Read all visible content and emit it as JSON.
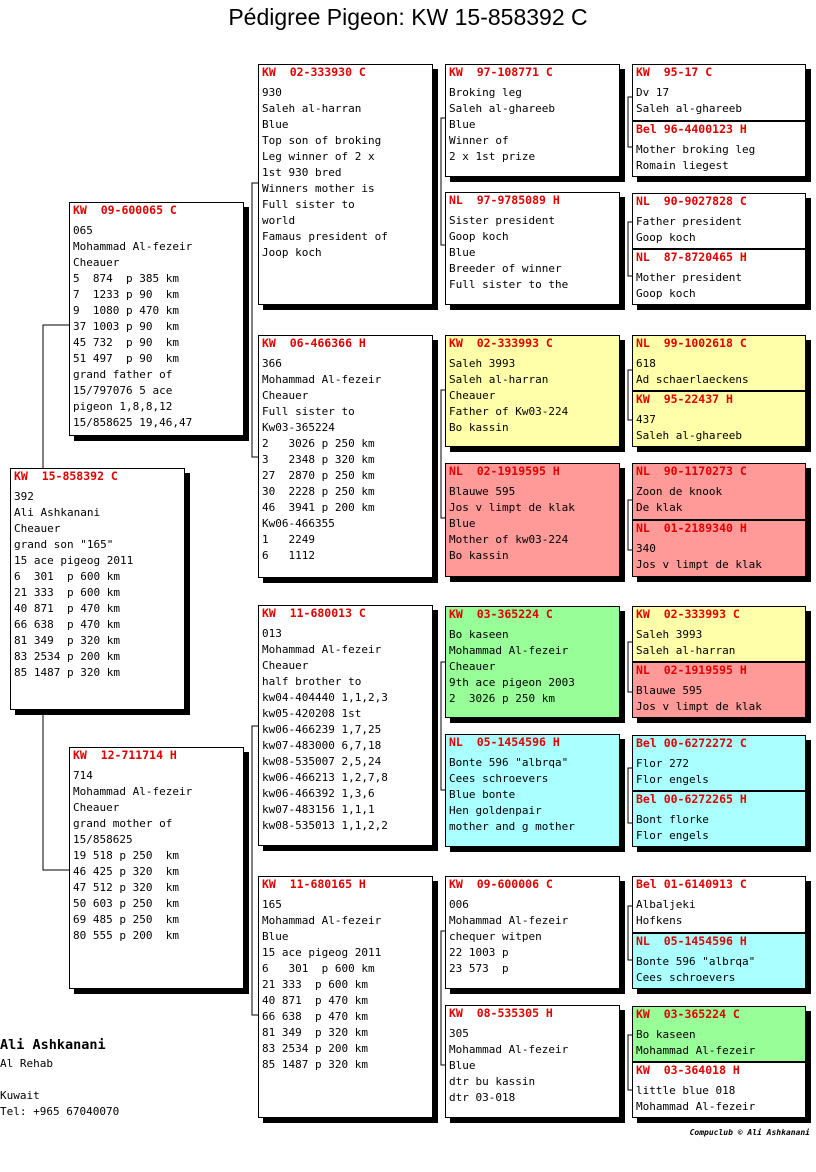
{
  "title": "Pédigree Pigeon: KW  15-858392 C",
  "colors": {
    "header_text": "#e00000",
    "yellow": "#ffffaa",
    "red": "#ff9a99",
    "green": "#98ff98",
    "cyan": "#aaffff",
    "white": "#ffffff"
  },
  "boxes": {
    "subject": {
      "header": "KW  15-858392 C",
      "lines": [
        "392",
        "Ali Ashkanani",
        "Cheauer",
        "grand son \"165\"",
        "15 ace pigeog 2011",
        "6  301  p 600 km",
        "21 333  p 600 km",
        "40 871  p 470 km",
        "66 638  p 470 km",
        "81 349  p 320 km",
        "83 2534 p 200 km",
        "85 1487 p 320 km"
      ]
    },
    "sire": {
      "header": "KW  09-600065 C",
      "lines": [
        "065",
        "Mohammad Al-fezeir",
        "Cheauer",
        "5  874  p 385 km",
        "7  1233 p 90  km",
        "9  1080 p 470 km",
        "37 1003 p 90  km",
        "45 732  p 90  km",
        "51 497  p 90  km",
        "grand father of",
        "15/797076 5 ace",
        "pigeon 1,8,8,12",
        "15/858625 19,46,47"
      ]
    },
    "dam": {
      "header": "KW  12-711714 H",
      "lines": [
        "714",
        "Mohammad Al-fezeir",
        "Cheauer",
        "grand mother of",
        "15/858625",
        "19 518 p 250  km",
        "46 425 p 320  km",
        "47 512 p 320  km",
        "50 603 p 250  km",
        "69 485 p 250  km",
        "80 555 p 200  km"
      ]
    },
    "ss": {
      "header": "KW  02-333930 C",
      "lines": [
        "930",
        "Saleh al-harran",
        "Blue",
        "Top son of broking",
        "Leg winner of 2 x",
        "1st 930 bred",
        "Winners mother is",
        "Full sister to",
        "world",
        "Famaus president of",
        "Joop koch"
      ]
    },
    "sd": {
      "header": "KW  06-466366 H",
      "lines": [
        "366",
        "Mohammad Al-fezeir",
        "Cheauer",
        "Full sister to",
        "Kw03-365224",
        "2   3026 p 250 km",
        "3   2348 p 320 km",
        "27  2870 p 250 km",
        "30  2228 p 250 km",
        "46  3941 p 200 km",
        "Kw06-466355",
        "1   2249",
        "6   1112"
      ]
    },
    "ds": {
      "header": "KW  11-680013 C",
      "lines": [
        "013",
        "Mohammad Al-fezeir",
        "Cheauer",
        "half brother to",
        "kw04-404440 1,1,2,3",
        "kw05-420208 1st",
        "kw06-466239 1,7,25",
        "kw07-483000 6,7,18",
        "kw08-535007 2,5,24",
        "kw06-466213 1,2,7,8",
        "kw06-466392 1,3,6",
        "kw07-483156 1,1,1",
        "kw08-535013 1,1,2,2"
      ]
    },
    "dd": {
      "header": "KW  11-680165 H",
      "lines": [
        "165",
        "Mohammad Al-fezeir",
        "Blue",
        "15 ace pigeog 2011",
        "6   301  p 600 km",
        "21 333  p 600 km",
        "40 871  p 470 km",
        "66 638  p 470 km",
        "81 349  p 320 km",
        "83 2534 p 200 km",
        "85 1487 p 320 km"
      ]
    },
    "sss": {
      "header": "KW  97-108771 C",
      "lines": [
        "Broking leg",
        "Saleh al-ghareeb",
        "Blue",
        "Winner of",
        "2 x 1st prize"
      ]
    },
    "ssd": {
      "header": "NL  97-9785089 H",
      "lines": [
        "Sister president",
        "Goop koch",
        "Blue",
        "Breeder of winner",
        "Full sister to the"
      ]
    },
    "sds": {
      "header": "KW  02-333993 C",
      "lines": [
        "Saleh 3993",
        "Saleh al-harran",
        "Cheauer",
        "Father of Kw03-224",
        "Bo kassin"
      ]
    },
    "sdd": {
      "header": "NL  02-1919595 H",
      "lines": [
        "Blauwe 595",
        "Jos v limpt de klak",
        "Blue",
        "Mother of kw03-224",
        "Bo kassin"
      ]
    },
    "dss": {
      "header": "KW  03-365224 C",
      "lines": [
        "Bo kaseen",
        "Mohammad Al-fezeir",
        "Cheauer",
        "9th ace pigeon 2003",
        "2  3026 p 250 km"
      ]
    },
    "dsd": {
      "header": "NL  05-1454596 H",
      "lines": [
        "Bonte 596 \"albrqa\"",
        "Cees schroevers",
        "Blue bonte",
        "Hen goldenpair",
        "mother and g mother"
      ]
    },
    "dds": {
      "header": "KW  09-600006 C",
      "lines": [
        "006",
        "Mohammad Al-fezeir",
        "chequer witpen",
        "22 1003 p",
        "23 573  p"
      ]
    },
    "ddd": {
      "header": "KW  08-535305 H",
      "lines": [
        "305",
        "Mohammad Al-fezeir",
        "Blue",
        "dtr bu kassin",
        "dtr 03-018"
      ]
    },
    "g1": {
      "header": "KW  95-17 C",
      "lines": [
        "Dv 17",
        "Saleh al-ghareeb"
      ]
    },
    "g2": {
      "header": "Bel 96-4400123 H",
      "lines": [
        "Mother broking leg",
        "Romain liegest"
      ]
    },
    "g3": {
      "header": "NL  90-9027828 C",
      "lines": [
        "Father president",
        "Goop koch"
      ]
    },
    "g4": {
      "header": "NL  87-8720465 H",
      "lines": [
        "Mother president",
        "Goop koch"
      ]
    },
    "g5": {
      "header": "NL  99-1002618 C",
      "lines": [
        "618",
        "Ad schaerlaeckens"
      ]
    },
    "g6": {
      "header": "KW  95-22437 H",
      "lines": [
        "437",
        "Saleh al-ghareeb"
      ]
    },
    "g7": {
      "header": "NL  90-1170273 C",
      "lines": [
        "Zoon de knook",
        "De klak"
      ]
    },
    "g8": {
      "header": "NL  01-2189340 H",
      "lines": [
        "340",
        "Jos v limpt de klak"
      ]
    },
    "g9": {
      "header": "KW  02-333993 C",
      "lines": [
        "Saleh 3993",
        "Saleh al-harran"
      ]
    },
    "g10": {
      "header": "NL  02-1919595 H",
      "lines": [
        "Blauwe 595",
        "Jos v limpt de klak"
      ]
    },
    "g11": {
      "header": "Bel 00-6272272 C",
      "lines": [
        "Flor 272",
        "Flor engels"
      ]
    },
    "g12": {
      "header": "Bel 00-6272265 H",
      "lines": [
        "Bont florke",
        "Flor engels"
      ]
    },
    "g13": {
      "header": "Bel 01-6140913 C",
      "lines": [
        "Albaljeki",
        "Hofkens"
      ]
    },
    "g14": {
      "header": "NL  05-1454596 H",
      "lines": [
        "Bonte 596 \"albrqa\"",
        "Cees schroevers"
      ]
    },
    "g15": {
      "header": "KW  03-365224 C",
      "lines": [
        "Bo kaseen",
        "Mohammad Al-fezeir"
      ]
    },
    "g16": {
      "header": "KW  03-364018 H",
      "lines": [
        "little blue 018",
        "Mohammad Al-fezeir"
      ]
    }
  },
  "owner": {
    "name": "Ali Ashkanani",
    "lines": [
      "Al Rehab",
      "",
      "Kuwait",
      "Tel: +965 67040070"
    ]
  },
  "credit": "Compuclub © Ali Ashkanani"
}
